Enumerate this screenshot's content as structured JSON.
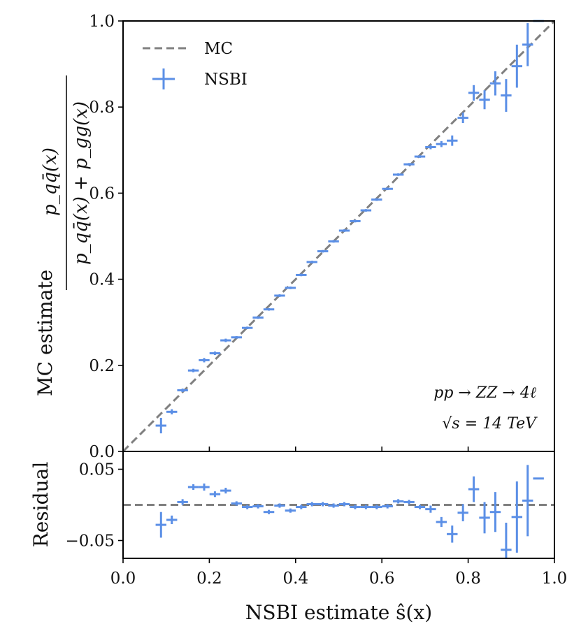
{
  "colors": {
    "nsbi": "#5b8fe6",
    "mc": "#808080",
    "axes": "#000000"
  },
  "chart_data": [
    {
      "type": "scatter",
      "panel": "main",
      "xlabel": "NSBI estimate ŝ(x)",
      "ylabel": "MC estimate",
      "ylabel_fraction_num": "p_qq̄(x)",
      "ylabel_fraction_den": "p_qq̄(x) + p_gg(x)",
      "xlim": [
        0.0,
        1.0
      ],
      "ylim": [
        0.0,
        1.0
      ],
      "xticks": [
        "0.0",
        "0.2",
        "0.4",
        "0.6",
        "0.8",
        "1.0"
      ],
      "yticks": [
        "0.0",
        "0.2",
        "0.4",
        "0.6",
        "0.8",
        "1.0"
      ],
      "grid": false,
      "legend_position": "top-left",
      "legend": [
        {
          "name": "MC",
          "style": "dashed-line"
        },
        {
          "name": "NSBI",
          "style": "errorbar"
        }
      ],
      "annotations": [
        "pp → ZZ → 4ℓ",
        "√s = 14 TeV"
      ],
      "series": [
        {
          "name": "MC",
          "type": "line",
          "x": [
            0.0,
            1.0
          ],
          "y": [
            0.0,
            1.0
          ]
        },
        {
          "name": "NSBI",
          "type": "errorbar",
          "bin_half_width": 0.0125,
          "x": [
            0.088,
            0.113,
            0.138,
            0.163,
            0.188,
            0.213,
            0.238,
            0.263,
            0.288,
            0.313,
            0.338,
            0.363,
            0.388,
            0.413,
            0.438,
            0.463,
            0.488,
            0.513,
            0.538,
            0.563,
            0.588,
            0.613,
            0.638,
            0.663,
            0.688,
            0.713,
            0.738,
            0.763,
            0.788,
            0.813,
            0.838,
            0.863,
            0.888,
            0.913,
            0.938,
            0.963
          ],
          "y": [
            0.06,
            0.092,
            0.142,
            0.188,
            0.212,
            0.228,
            0.258,
            0.265,
            0.287,
            0.311,
            0.33,
            0.362,
            0.38,
            0.41,
            0.44,
            0.465,
            0.488,
            0.513,
            0.535,
            0.56,
            0.585,
            0.61,
            0.643,
            0.667,
            0.685,
            0.707,
            0.714,
            0.722,
            0.775,
            0.833,
            0.817,
            0.855,
            0.827,
            0.895,
            0.945,
            1.0
          ],
          "yerr": [
            0.018,
            0.006,
            0.004,
            0.004,
            0.005,
            0.004,
            0.004,
            0.003,
            0.003,
            0.003,
            0.003,
            0.003,
            0.003,
            0.003,
            0.003,
            0.003,
            0.003,
            0.003,
            0.003,
            0.003,
            0.003,
            0.003,
            0.003,
            0.003,
            0.003,
            0.005,
            0.007,
            0.012,
            0.012,
            0.018,
            0.022,
            0.028,
            0.038,
            0.05,
            0.05,
            0.0
          ]
        }
      ]
    },
    {
      "type": "scatter",
      "panel": "residual",
      "xlabel": "NSBI estimate ŝ(x)",
      "ylabel": "Residual",
      "xlim": [
        0.0,
        1.0
      ],
      "ylim": [
        -0.075,
        0.075
      ],
      "xticks": [
        "0.0",
        "0.2",
        "0.4",
        "0.6",
        "0.8",
        "1.0"
      ],
      "yticks": [
        "0.05",
        "−0.05"
      ],
      "ytick_values": [
        0.05,
        -0.05
      ],
      "grid": false,
      "series": [
        {
          "name": "MC",
          "type": "line",
          "x": [
            0.0,
            1.0
          ],
          "y": [
            0.0,
            0.0
          ]
        },
        {
          "name": "NSBI",
          "type": "errorbar",
          "bin_half_width": 0.0125,
          "x": [
            0.088,
            0.113,
            0.138,
            0.163,
            0.188,
            0.213,
            0.238,
            0.263,
            0.288,
            0.313,
            0.338,
            0.363,
            0.388,
            0.413,
            0.438,
            0.463,
            0.488,
            0.513,
            0.538,
            0.563,
            0.588,
            0.613,
            0.638,
            0.663,
            0.688,
            0.713,
            0.738,
            0.763,
            0.788,
            0.813,
            0.838,
            0.863,
            0.888,
            0.913,
            0.938,
            0.963
          ],
          "y": [
            -0.028,
            -0.021,
            0.004,
            0.025,
            0.025,
            0.015,
            0.02,
            0.002,
            -0.003,
            -0.002,
            -0.01,
            -0.001,
            -0.008,
            -0.003,
            0.001,
            0.001,
            -0.001,
            0.001,
            -0.003,
            -0.003,
            -0.003,
            -0.002,
            0.005,
            0.004,
            -0.003,
            -0.006,
            -0.024,
            -0.041,
            -0.011,
            0.022,
            -0.018,
            -0.01,
            -0.063,
            -0.017,
            0.006,
            0.037
          ],
          "yerr": [
            0.018,
            0.006,
            0.004,
            0.004,
            0.005,
            0.004,
            0.004,
            0.003,
            0.003,
            0.003,
            0.003,
            0.003,
            0.003,
            0.003,
            0.003,
            0.003,
            0.003,
            0.003,
            0.003,
            0.003,
            0.003,
            0.003,
            0.003,
            0.003,
            0.003,
            0.005,
            0.007,
            0.012,
            0.012,
            0.018,
            0.022,
            0.028,
            0.038,
            0.05,
            0.05,
            0.0
          ]
        }
      ]
    }
  ]
}
